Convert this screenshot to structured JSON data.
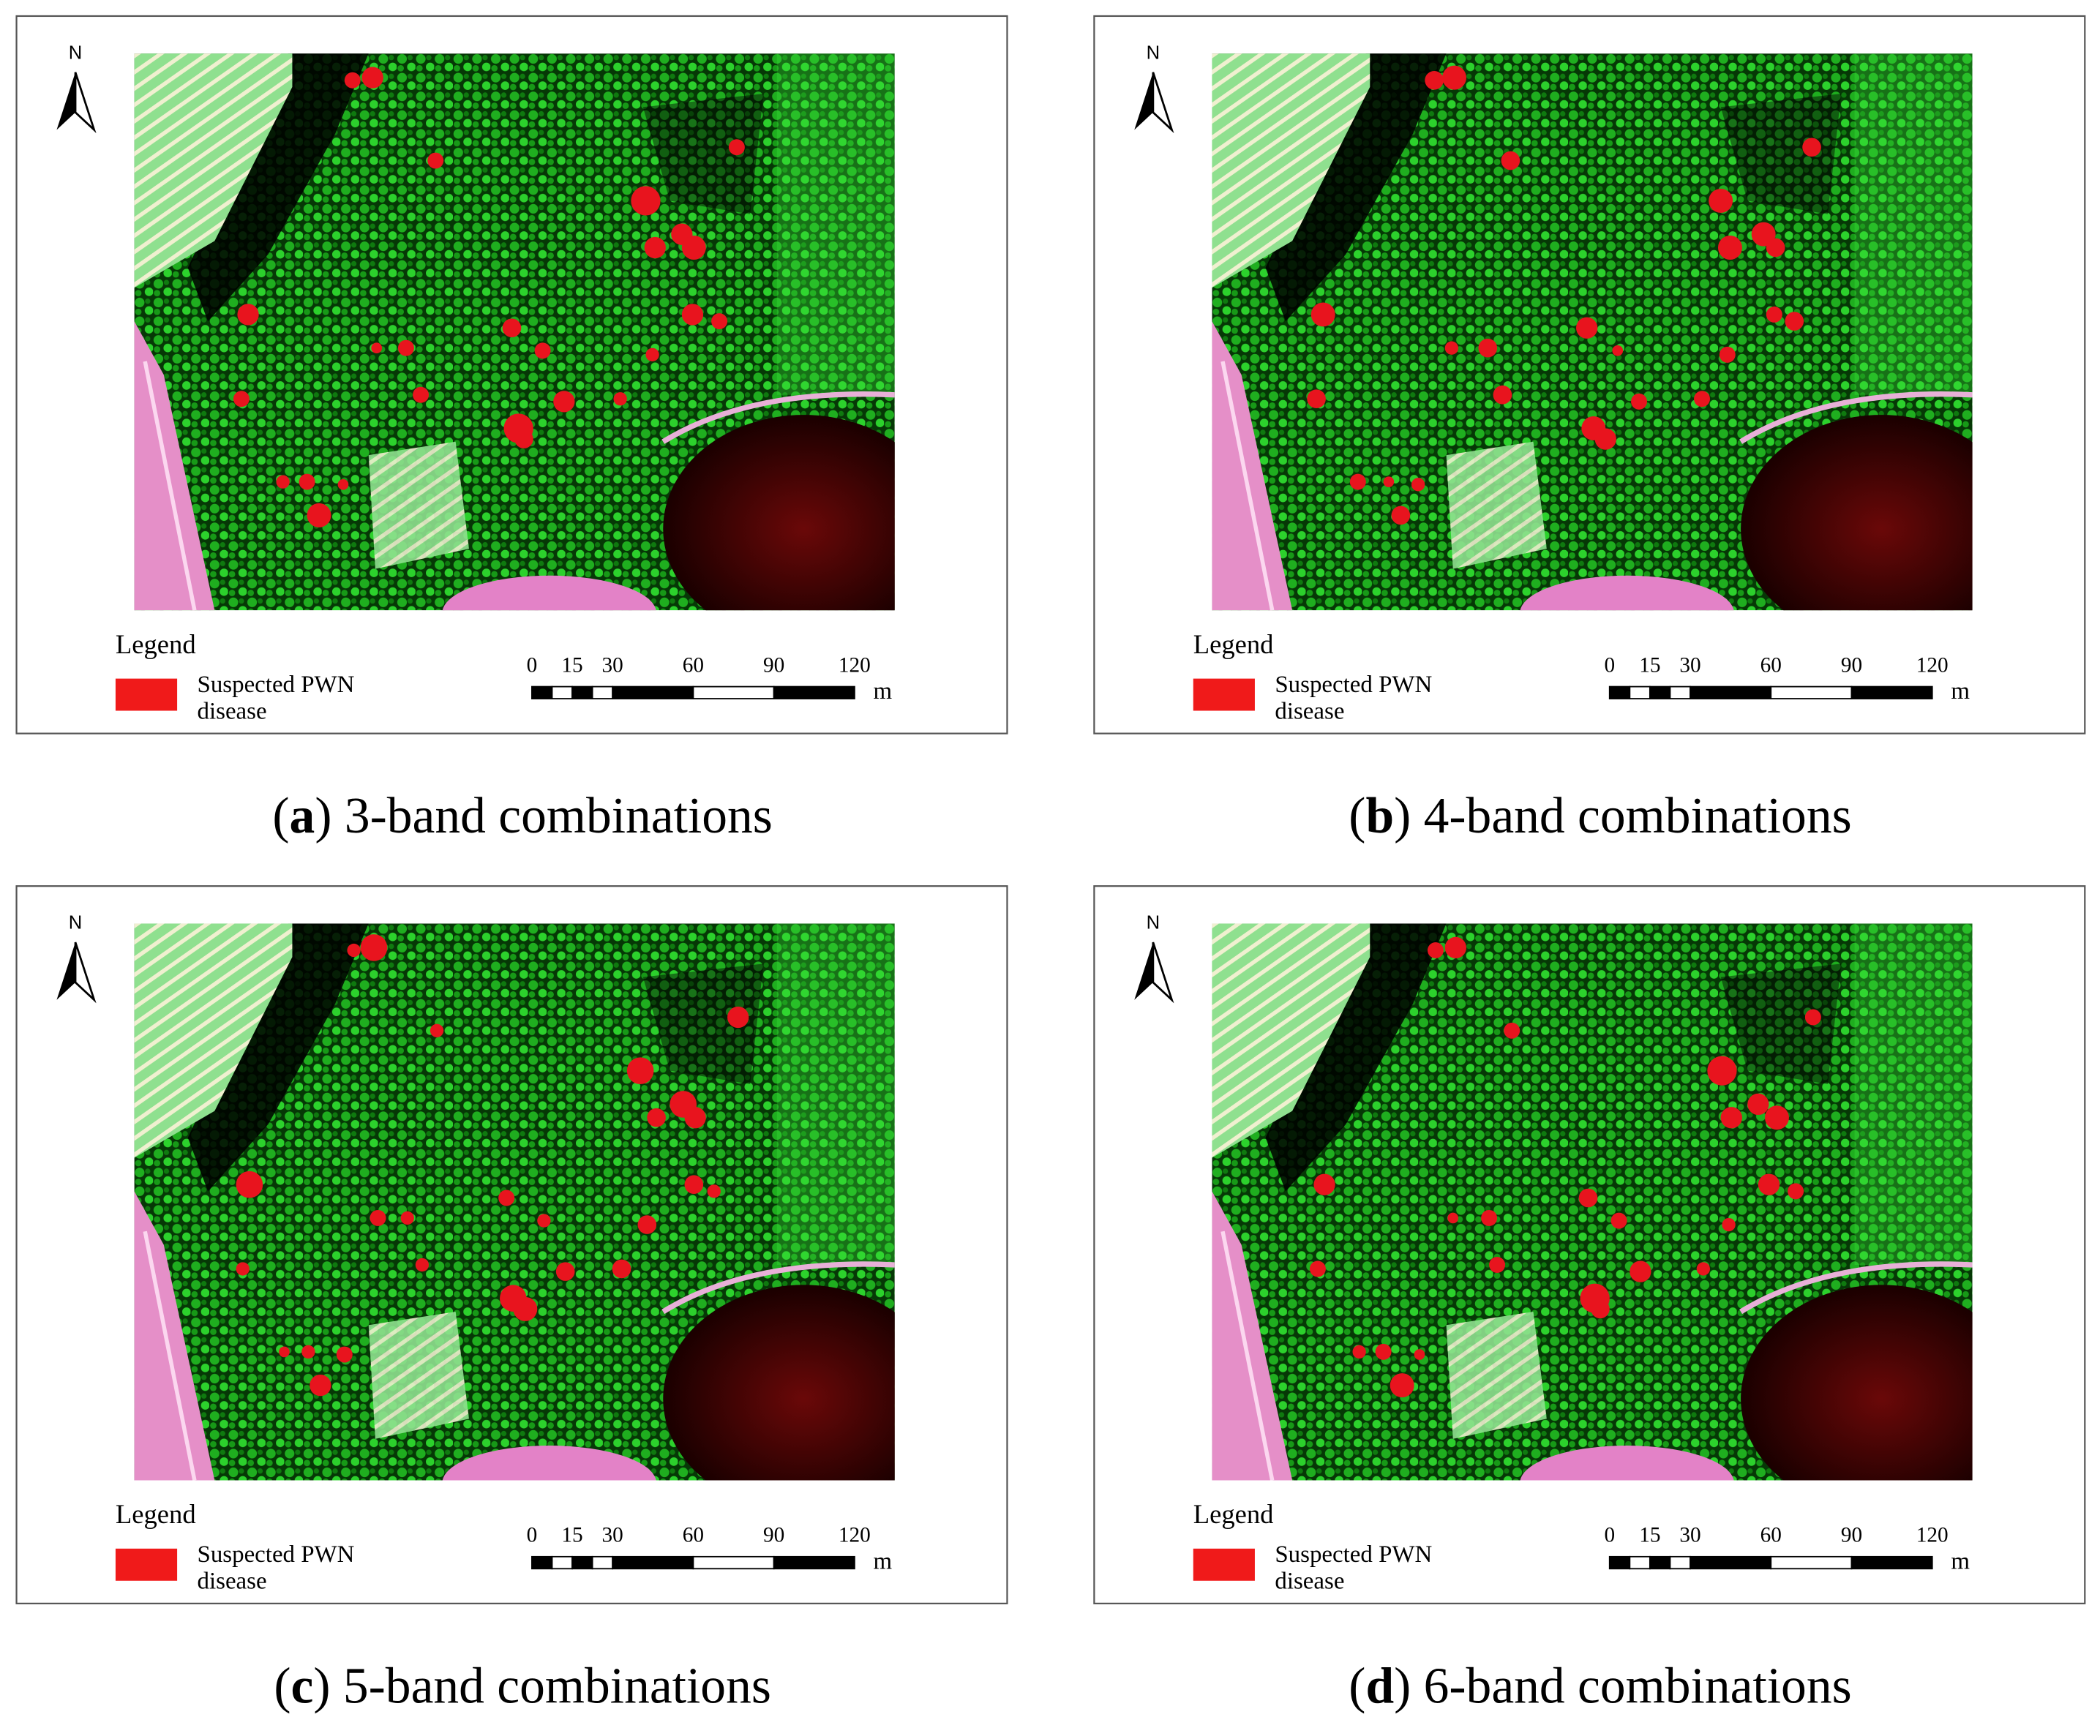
{
  "panels": [
    {
      "north": "N",
      "legend_title": "Legend",
      "legend_item": [
        "Suspected PWN",
        "disease"
      ],
      "scale_ticks": [
        0,
        15,
        30,
        60,
        90,
        120
      ],
      "scale_unit": "m",
      "caption": {
        "open": "(",
        "label": "a",
        "text": ") 3-band combinations"
      }
    },
    {
      "north": "N",
      "legend_title": "Legend",
      "legend_item": [
        "Suspected PWN",
        "disease"
      ],
      "scale_ticks": [
        0,
        15,
        30,
        60,
        90,
        120
      ],
      "scale_unit": "m",
      "caption": {
        "open": "(",
        "label": "b",
        "text": ") 4-band combinations"
      }
    },
    {
      "north": "N",
      "legend_title": "Legend",
      "legend_item": [
        "Suspected PWN",
        "disease"
      ],
      "scale_ticks": [
        0,
        15,
        30,
        60,
        90,
        120
      ],
      "scale_unit": "m",
      "caption": {
        "open": "(",
        "label": "c",
        "text": ") 5-band combinations"
      }
    },
    {
      "north": "N",
      "legend_title": "Legend",
      "legend_item": [
        "Suspected PWN",
        "disease"
      ],
      "scale_ticks": [
        0,
        15,
        30,
        60,
        90,
        120
      ],
      "scale_unit": "m",
      "caption": {
        "open": "(",
        "label": "d",
        "text": ") 6-band combinations"
      }
    }
  ]
}
